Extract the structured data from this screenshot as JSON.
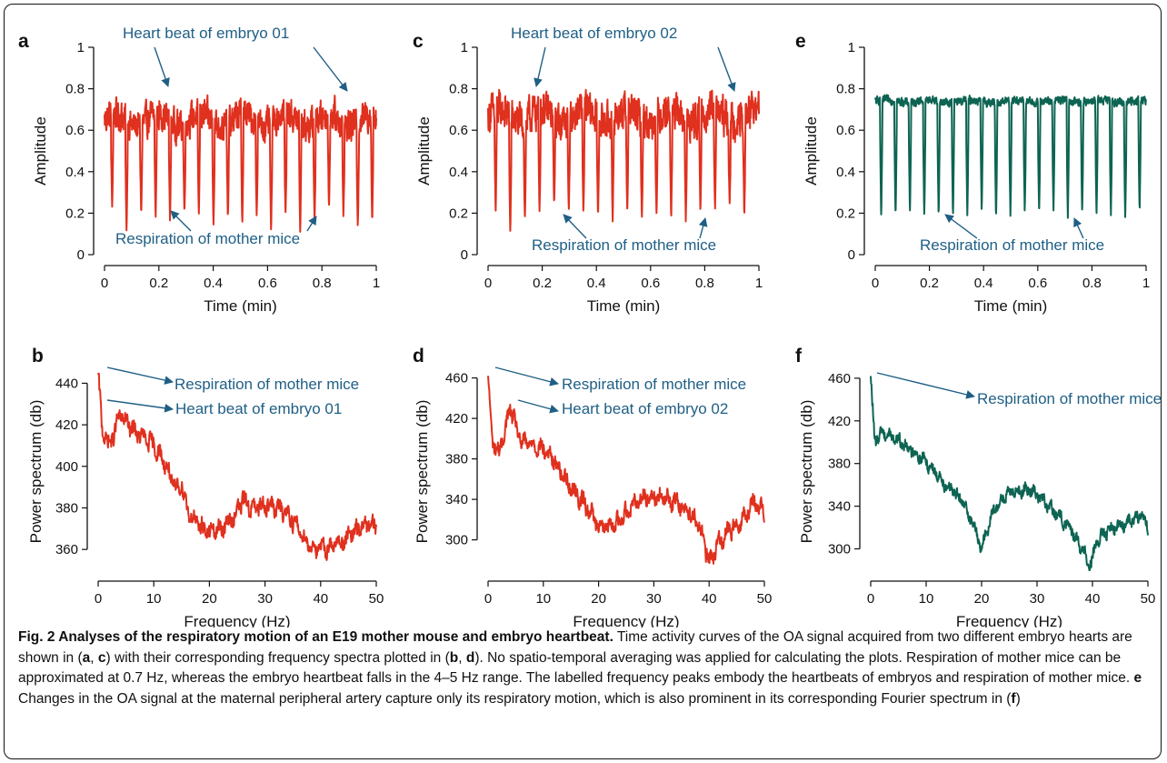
{
  "colors": {
    "red": "#e0301e",
    "green": "#0d6452",
    "annotation": "#1f5f85"
  },
  "chart_data": [
    {
      "panel": "a",
      "type": "line",
      "xlabel": "Time (min)",
      "ylabel": "Amplitude",
      "xlim": [
        0,
        1
      ],
      "ylim": [
        0,
        1
      ],
      "xticks": [
        0,
        0.2,
        0.4,
        0.6,
        0.8,
        1
      ],
      "yticks": [
        0,
        0.2,
        0.4,
        0.6,
        0.8,
        1
      ],
      "color": "red",
      "signal": {
        "baseline": 0.65,
        "noise": 0.07,
        "trough_times": [
          0.028,
          0.081,
          0.135,
          0.188,
          0.241,
          0.294,
          0.347,
          0.401,
          0.454,
          0.507,
          0.56,
          0.613,
          0.666,
          0.72,
          0.773,
          0.826,
          0.879,
          0.932,
          0.985
        ],
        "trough_values": [
          0.22,
          0.11,
          0.19,
          0.17,
          0.16,
          0.2,
          0.18,
          0.14,
          0.17,
          0.14,
          0.19,
          0.1,
          0.18,
          0.11,
          0.16,
          0.22,
          0.18,
          0.13,
          0.15
        ]
      },
      "annotations": [
        {
          "text": "Heart beat of embryo 01",
          "pos": "top"
        },
        {
          "text": "Respiration of mother mice",
          "pos": "bottom"
        }
      ]
    },
    {
      "panel": "c",
      "type": "line",
      "xlabel": "Time (min)",
      "ylabel": "Amplitude",
      "xlim": [
        0,
        1
      ],
      "ylim": [
        0,
        1
      ],
      "xticks": [
        0,
        0.2,
        0.4,
        0.6,
        0.8,
        1
      ],
      "yticks": [
        0,
        0.2,
        0.4,
        0.6,
        0.8,
        1
      ],
      "color": "red",
      "signal": {
        "baseline": 0.67,
        "noise": 0.08,
        "trough_times": [
          0.028,
          0.082,
          0.136,
          0.19,
          0.244,
          0.298,
          0.352,
          0.406,
          0.46,
          0.514,
          0.568,
          0.622,
          0.676,
          0.73,
          0.784,
          0.838,
          0.892,
          0.946
        ],
        "trough_values": [
          0.2,
          0.1,
          0.16,
          0.21,
          0.24,
          0.21,
          0.2,
          0.18,
          0.16,
          0.2,
          0.17,
          0.19,
          0.16,
          0.16,
          0.2,
          0.21,
          0.24,
          0.18
        ]
      },
      "annotations": [
        {
          "text": "Heart beat of embryo 02",
          "pos": "top"
        },
        {
          "text": "Respiration of mother mice",
          "pos": "bottom"
        }
      ]
    },
    {
      "panel": "e",
      "type": "line",
      "xlabel": "Time (min)",
      "ylabel": "Amplitude",
      "xlim": [
        0,
        1
      ],
      "ylim": [
        0,
        1
      ],
      "xticks": [
        0,
        0.2,
        0.4,
        0.6,
        0.8,
        1
      ],
      "yticks": [
        0,
        0.2,
        0.4,
        0.6,
        0.8,
        1
      ],
      "color": "green",
      "signal": {
        "baseline": 0.74,
        "noise": 0.018,
        "trough_times": [
          0.022,
          0.075,
          0.128,
          0.181,
          0.234,
          0.287,
          0.34,
          0.393,
          0.446,
          0.499,
          0.552,
          0.605,
          0.658,
          0.711,
          0.764,
          0.817,
          0.87,
          0.923,
          0.976
        ],
        "trough_values": [
          0.18,
          0.18,
          0.2,
          0.19,
          0.18,
          0.18,
          0.19,
          0.2,
          0.17,
          0.18,
          0.2,
          0.19,
          0.2,
          0.17,
          0.19,
          0.18,
          0.19,
          0.16,
          0.2
        ]
      },
      "annotations": [
        {
          "text": "Respiration of mother mice",
          "pos": "bottom"
        }
      ]
    },
    {
      "panel": "b",
      "type": "line",
      "xlabel": "Frequency (Hz)",
      "ylabel": "Power spectrum (db)",
      "xlim": [
        0,
        50
      ],
      "ylim": [
        350,
        445
      ],
      "xticks": [
        0,
        10,
        20,
        30,
        40,
        50
      ],
      "yticks": [
        360,
        380,
        400,
        420,
        440
      ],
      "color": "red",
      "control_points": [
        [
          0,
          445
        ],
        [
          0.7,
          418
        ],
        [
          2,
          410
        ],
        [
          4,
          425
        ],
        [
          6,
          418
        ],
        [
          8,
          414
        ],
        [
          10,
          410
        ],
        [
          12,
          402
        ],
        [
          14,
          388
        ],
        [
          15,
          392
        ],
        [
          16,
          380
        ],
        [
          17,
          375
        ],
        [
          18,
          372
        ],
        [
          20,
          368
        ],
        [
          22,
          370
        ],
        [
          24,
          374
        ],
        [
          26,
          384
        ],
        [
          28,
          379
        ],
        [
          30,
          382
        ],
        [
          32,
          380
        ],
        [
          34,
          378
        ],
        [
          36,
          370
        ],
        [
          38,
          362
        ],
        [
          40,
          360
        ],
        [
          42,
          362
        ],
        [
          44,
          364
        ],
        [
          46,
          368
        ],
        [
          48,
          372
        ],
        [
          50,
          370
        ]
      ],
      "noise": 3.5,
      "annotations": [
        {
          "text": "Respiration of mother mice",
          "pos": "top"
        },
        {
          "text": "Heart beat of embryo 01",
          "pos": "second"
        }
      ]
    },
    {
      "panel": "d",
      "type": "line",
      "xlabel": "Frequency (Hz)",
      "ylabel": "Power spectrum (db)",
      "xlim": [
        0,
        50
      ],
      "ylim": [
        270,
        465
      ],
      "xticks": [
        0,
        10,
        20,
        30,
        40,
        50
      ],
      "yticks": [
        300,
        340,
        380,
        420,
        460
      ],
      "color": "red",
      "control_points": [
        [
          0,
          462
        ],
        [
          0.7,
          400
        ],
        [
          2,
          385
        ],
        [
          4,
          430
        ],
        [
          6,
          396
        ],
        [
          8,
          395
        ],
        [
          10,
          390
        ],
        [
          12,
          378
        ],
        [
          14,
          360
        ],
        [
          16,
          345
        ],
        [
          18,
          332
        ],
        [
          20,
          315
        ],
        [
          22,
          312
        ],
        [
          24,
          320
        ],
        [
          26,
          335
        ],
        [
          28,
          342
        ],
        [
          30,
          344
        ],
        [
          32,
          340
        ],
        [
          34,
          338
        ],
        [
          36,
          330
        ],
        [
          38,
          318
        ],
        [
          40,
          278
        ],
        [
          42,
          300
        ],
        [
          44,
          312
        ],
        [
          46,
          320
        ],
        [
          48,
          338
        ],
        [
          50,
          328
        ]
      ],
      "noise": 7,
      "annotations": [
        {
          "text": "Respiration of mother mice",
          "pos": "top"
        },
        {
          "text": "Heart beat of embryo 02",
          "pos": "second"
        }
      ]
    },
    {
      "panel": "f",
      "type": "line",
      "xlabel": "Frequency (Hz)",
      "ylabel": "Power spectrum (db)",
      "xlim": [
        0,
        50
      ],
      "ylim": [
        280,
        465
      ],
      "xticks": [
        0,
        10,
        20,
        30,
        40,
        50
      ],
      "yticks": [
        300,
        340,
        380,
        420,
        460
      ],
      "color": "green",
      "control_points": [
        [
          0,
          462
        ],
        [
          0.7,
          400
        ],
        [
          2,
          410
        ],
        [
          4,
          405
        ],
        [
          6,
          398
        ],
        [
          8,
          390
        ],
        [
          10,
          382
        ],
        [
          12,
          370
        ],
        [
          14,
          358
        ],
        [
          16,
          348
        ],
        [
          18,
          330
        ],
        [
          19,
          315
        ],
        [
          20,
          300
        ],
        [
          21,
          318
        ],
        [
          22,
          335
        ],
        [
          24,
          348
        ],
        [
          26,
          355
        ],
        [
          28,
          356
        ],
        [
          30,
          352
        ],
        [
          32,
          340
        ],
        [
          34,
          330
        ],
        [
          36,
          320
        ],
        [
          38,
          300
        ],
        [
          39.5,
          285
        ],
        [
          41,
          308
        ],
        [
          43,
          318
        ],
        [
          45,
          322
        ],
        [
          47,
          328
        ],
        [
          49,
          330
        ],
        [
          50,
          318
        ]
      ],
      "noise": 5,
      "annotations": [
        {
          "text": "Respiration of mother mice",
          "pos": "top"
        }
      ]
    }
  ],
  "caption": {
    "title": "Fig. 2 Analyses of the respiratory motion of an E19 mother mouse and embryo heartbeat.",
    "s1": " Time activity curves of the OA signal acquired from two different embryo hearts are shown in (",
    "a": "a",
    "comma1": ", ",
    "c": "c",
    "s2": ") with their corresponding frequency spectra plotted in (",
    "b": "b",
    "comma2": ", ",
    "d": "d",
    "s3": "). No spatio-temporal averaging was applied for calculating the plots. Respiration of mother mice can be approximated at 0.7 Hz, whereas the embryo heartbeat falls in the 4–5 Hz range. The labelled frequency peaks embody the heartbeats of embryos and respiration of mother mice. ",
    "e": "e",
    "s4": " Changes in the OA signal at the maternal peripheral artery capture only its respiratory motion, which is also prominent in its corresponding Fourier spectrum in (",
    "f": "f",
    "s5": ")"
  }
}
